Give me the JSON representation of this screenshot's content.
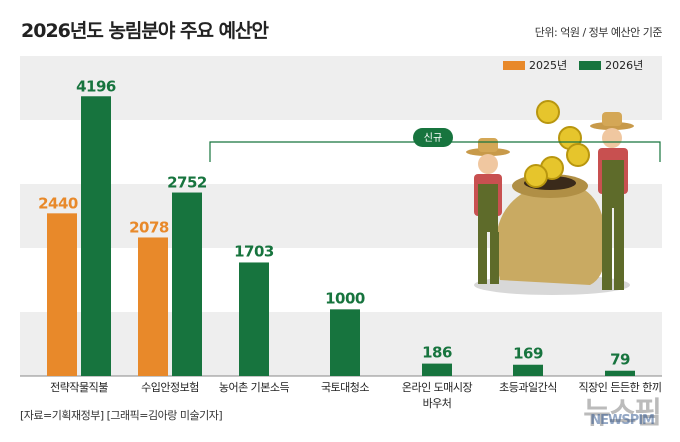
{
  "title": "2026년도 농림분야 주요 예산안",
  "unit": "단위: 억원 / 정부 예산안 기준",
  "source": "[자료=기획재정부] [그래픽=김아랑 미술기자]",
  "watermark": "뉴스핌",
  "watermark_sub": "NEWSPIM",
  "badge": "신규",
  "colors": {
    "y2025": "#e8892a",
    "y2026": "#17743e",
    "band": "#eeeeee"
  },
  "chart_data": {
    "type": "bar",
    "title": "2026년도 농림분야 주요 예산안",
    "categories": [
      "전략작물직불",
      "수입안정보험",
      "농어촌 기본소득",
      "국토대청소",
      "온라인 도매시장\n바우처",
      "초등과일간식",
      "직장인 든든한 한끼"
    ],
    "series": [
      {
        "name": "2025년",
        "values": [
          2440,
          2078,
          null,
          null,
          null,
          null,
          null
        ]
      },
      {
        "name": "2026년",
        "values": [
          4196,
          2752,
          1703,
          1000,
          186,
          169,
          79
        ]
      }
    ],
    "ylim": [
      0,
      4800
    ],
    "grid": "alternating bands",
    "legend": "top-right",
    "new_items_bracket": [
      "농어촌 기본소득",
      "국토대청소",
      "온라인 도매시장\n바우처",
      "초등과일간식",
      "직장인 든든한 한끼"
    ]
  }
}
